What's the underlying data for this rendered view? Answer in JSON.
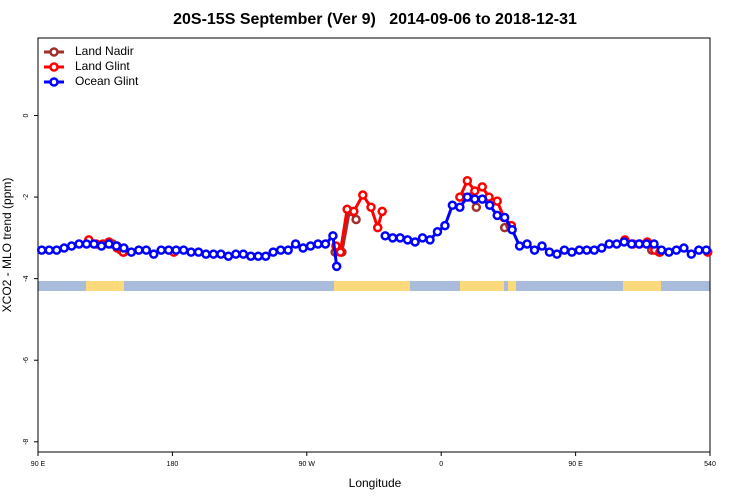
{
  "chart_data": {
    "type": "line",
    "title": "20S-15S September (Ver 9)   2014-09-06 to 2018-12-31",
    "xlabel": "Longitude",
    "ylabel": "XCO2 - MLO trend (ppm)",
    "xlim": [
      90,
      540
    ],
    "xticks": [
      {
        "value": 90,
        "label": "90 E"
      },
      180,
      {
        "value": 270,
        "label": "90 W"
      },
      {
        "value": 360,
        "label": "0"
      },
      {
        "value": 450,
        "label": "90 E"
      },
      540
    ],
    "ylim": [
      -8.25,
      1.9
    ],
    "yticks": [
      0,
      -2,
      -4,
      -6,
      -8
    ],
    "legend": "top-left",
    "series": [
      {
        "name": "Land Nadir",
        "color": "#a0302d",
        "x": [
          140,
          143,
          145.5,
          147.5,
          200,
          289,
          293.5,
          298.5,
          303,
          340,
          374.5,
          379.5,
          383.5,
          395,
          402.5,
          406,
          450,
          501,
          506
        ],
        "values": [
          -3.15,
          -3.2,
          -3.3,
          -3.35,
          null,
          -3.35,
          -3.35,
          -2.35,
          -2.55,
          null,
          -2.0,
          -2.0,
          -2.25,
          null,
          -2.75,
          -2.7,
          null,
          -3.3,
          -3.35
        ]
      },
      {
        "name": "Land Glint",
        "color": "#ff0000",
        "x": [
          124,
          129,
          133.5,
          137.5,
          143,
          147,
          165,
          181,
          240,
          289.5,
          292.5,
          297,
          301.5,
          307.5,
          313,
          317.5,
          320.5,
          350,
          372.5,
          377.5,
          382.5,
          387.5,
          392,
          397.5,
          402,
          407,
          450,
          483,
          488.5,
          493,
          498,
          503,
          506.5,
          520,
          538.5
        ],
        "values": [
          -3.05,
          -3.15,
          -3.15,
          -3.1,
          -3.25,
          -3.35,
          null,
          -3.35,
          null,
          -3.2,
          -3.35,
          -2.3,
          -2.35,
          -1.95,
          -2.25,
          -2.75,
          -2.35,
          null,
          -2.0,
          -1.6,
          -1.85,
          -1.75,
          -2.0,
          -2.1,
          -2.5,
          -2.7,
          null,
          -3.05,
          -3.15,
          -3.15,
          -3.1,
          -3.3,
          -3.35,
          null,
          -3.35
        ]
      },
      {
        "name": "Ocean Glint",
        "color": "#0000ff",
        "x": [
          92.5,
          97.5,
          102.5,
          107.5,
          112.5,
          117.5,
          122.5,
          127.5,
          132.5,
          137.5,
          142.5,
          147.5,
          152.5,
          157.5,
          162.5,
          167.5,
          172.5,
          177.5,
          182.5,
          187.5,
          192.5,
          197.5,
          202.5,
          207.5,
          212.5,
          217.5,
          222.5,
          227.5,
          232.5,
          237.5,
          242.5,
          247.5,
          252.5,
          257.5,
          262.5,
          267.5,
          272.5,
          277.5,
          282.5,
          287.5,
          290,
          305,
          322.5,
          327.5,
          332.5,
          337.5,
          342.5,
          347.5,
          352.5,
          357.5,
          362.5,
          367.5,
          372.5,
          377.5,
          382.5,
          387.5,
          392.5,
          397.5,
          402.5,
          407.5,
          412.5,
          417.5,
          422.5,
          427.5,
          432.5,
          437.5,
          442.5,
          447.5,
          452.5,
          457.5,
          462.5,
          467.5,
          472.5,
          477.5,
          482.5,
          487.5,
          492.5,
          497.5,
          502.5,
          507.5,
          512.5,
          517.5,
          522.5,
          527.5,
          532.5,
          537.5
        ],
        "values": [
          -3.3,
          -3.3,
          -3.3,
          -3.25,
          -3.2,
          -3.15,
          -3.15,
          -3.15,
          -3.2,
          -3.15,
          -3.2,
          -3.25,
          -3.35,
          -3.3,
          -3.3,
          -3.4,
          -3.3,
          -3.3,
          -3.3,
          -3.3,
          -3.35,
          -3.35,
          -3.4,
          -3.4,
          -3.4,
          -3.45,
          -3.4,
          -3.4,
          -3.45,
          -3.45,
          -3.45,
          -3.35,
          -3.3,
          -3.3,
          -3.15,
          -3.25,
          -3.2,
          -3.15,
          -3.15,
          -2.95,
          -3.7,
          null,
          -2.95,
          -3.0,
          -3.0,
          -3.05,
          -3.1,
          -3.0,
          -3.05,
          -2.85,
          -2.7,
          -2.2,
          -2.25,
          -2.0,
          -2.05,
          -2.05,
          -2.2,
          -2.45,
          -2.5,
          -2.8,
          -3.2,
          -3.15,
          -3.3,
          -3.2,
          -3.35,
          -3.4,
          -3.3,
          -3.35,
          -3.3,
          -3.3,
          -3.3,
          -3.25,
          -3.15,
          -3.15,
          -3.1,
          -3.15,
          -3.15,
          -3.15,
          -3.15,
          -3.3,
          -3.35,
          -3.3,
          -3.25,
          -3.4,
          -3.3,
          -3.3
        ]
      }
    ]
  }
}
